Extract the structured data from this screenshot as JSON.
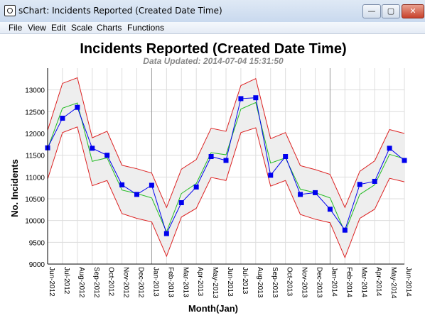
{
  "window": {
    "title": "sChart: Incidents Reported (Created Date Time)",
    "min_label": "—",
    "max_label": "▢",
    "close_label": "✕"
  },
  "menu": [
    "File",
    "View",
    "Edit",
    "Scale",
    "Charts",
    "Functions"
  ],
  "chart_data": {
    "type": "line",
    "title": "Incidents Reported (Created Date Time)",
    "subtitle": "Data Updated: 2014-07-04 15:31:50",
    "xlabel": "Month(Jan)",
    "ylabel": "No. Incidents",
    "ylim": [
      9000,
      13500
    ],
    "yticks": [
      9000,
      9500,
      10000,
      10500,
      11000,
      11500,
      12000,
      12500,
      13000
    ],
    "grid": true,
    "categories": [
      "Jun-2012",
      "Jul-2012",
      "Aug-2012",
      "Sep-2012",
      "Oct-2012",
      "Nov-2012",
      "Dec-2012",
      "Jan-2013",
      "Feb-2013",
      "Mar-2013",
      "Apr-2013",
      "May-2013",
      "Jun-2013",
      "Jul-2013",
      "Aug-2013",
      "Sep-2013",
      "Oct-2013",
      "Nov-2013",
      "Dec-2013",
      "Jan-2014",
      "Feb-2014",
      "Mar-2014",
      "Apr-2014",
      "May-2014",
      "Jun-2014"
    ],
    "series": [
      {
        "role": "actual",
        "color": "#0000ee",
        "marker": "square",
        "values": [
          11670,
          12350,
          12600,
          11660,
          11500,
          10820,
          10600,
          10810,
          9700,
          10410,
          10770,
          11470,
          11380,
          12800,
          12820,
          11040,
          11470,
          10600,
          10640,
          10260,
          9780,
          10830,
          10900,
          11660,
          11380
        ]
      },
      {
        "role": "fitted",
        "color": "#22bb22",
        "values": [
          11650,
          12580,
          12700,
          11360,
          11440,
          10700,
          10620,
          10520,
          9740,
          10620,
          10850,
          11560,
          11510,
          12560,
          12710,
          11320,
          11440,
          10720,
          10640,
          10520,
          9730,
          10600,
          10820,
          11520,
          11420
        ]
      },
      {
        "role": "upper",
        "color": "#dd2222",
        "values": [
          12070,
          13150,
          13280,
          11900,
          12050,
          11270,
          11190,
          11090,
          10300,
          11180,
          11400,
          12120,
          12050,
          13100,
          13260,
          11880,
          12020,
          11260,
          11170,
          11060,
          10300,
          11130,
          11370,
          12090,
          12000
        ]
      },
      {
        "role": "lower",
        "color": "#dd2222",
        "values": [
          10950,
          12020,
          12150,
          10800,
          10920,
          10160,
          10050,
          9970,
          9180,
          10080,
          10280,
          10990,
          10920,
          12020,
          12130,
          10790,
          10920,
          10140,
          10030,
          9950,
          9150,
          10050,
          10260,
          10970,
          10890
        ]
      }
    ],
    "band_fill": "#eeeeee"
  }
}
